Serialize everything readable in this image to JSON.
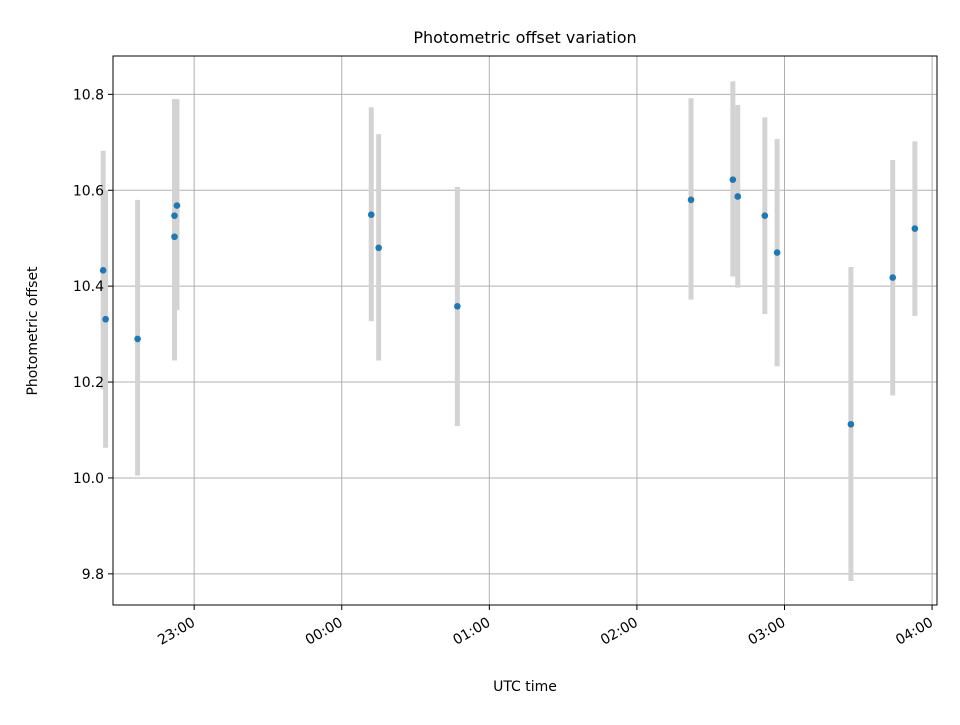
{
  "chart_data": {
    "type": "scatter",
    "title": "Photometric offset variation",
    "xlabel": "UTC time",
    "ylabel": "Photometric offset",
    "xlim": [
      "22:27",
      "04:02"
    ],
    "ylim": [
      9.735,
      10.88
    ],
    "x_ticks": [
      "23:00",
      "00:00",
      "01:00",
      "02:00",
      "03:00",
      "04:00"
    ],
    "y_ticks": [
      "9.8",
      "10.0",
      "10.2",
      "10.4",
      "10.6",
      "10.8"
    ],
    "grid": true,
    "point_color": "#1f77b4",
    "errorbar_color": "#d3d3d3",
    "points": [
      {
        "x": "22:23",
        "y": 10.433,
        "ylow": 10.185,
        "yhigh": 10.682
      },
      {
        "x": "22:24",
        "y": 10.331,
        "ylow": 10.063,
        "yhigh": 10.6
      },
      {
        "x": "22:37",
        "y": 10.29,
        "ylow": 10.005,
        "yhigh": 10.58
      },
      {
        "x": "22:52",
        "y": 10.503,
        "ylow": 10.245,
        "yhigh": 10.763
      },
      {
        "x": "22:52",
        "y": 10.547,
        "ylow": 10.3,
        "yhigh": 10.79
      },
      {
        "x": "22:53",
        "y": 10.568,
        "ylow": 10.35,
        "yhigh": 10.79
      },
      {
        "x": "00:12",
        "y": 10.549,
        "ylow": 10.327,
        "yhigh": 10.773
      },
      {
        "x": "00:15",
        "y": 10.48,
        "ylow": 10.245,
        "yhigh": 10.717
      },
      {
        "x": "00:47",
        "y": 10.358,
        "ylow": 10.108,
        "yhigh": 10.607
      },
      {
        "x": "02:22",
        "y": 10.58,
        "ylow": 10.372,
        "yhigh": 10.792
      },
      {
        "x": "02:39",
        "y": 10.622,
        "ylow": 10.42,
        "yhigh": 10.827
      },
      {
        "x": "02:41",
        "y": 10.587,
        "ylow": 10.397,
        "yhigh": 10.778
      },
      {
        "x": "02:52",
        "y": 10.547,
        "ylow": 10.342,
        "yhigh": 10.752
      },
      {
        "x": "02:57",
        "y": 10.47,
        "ylow": 10.233,
        "yhigh": 10.707
      },
      {
        "x": "03:27",
        "y": 10.112,
        "ylow": 9.785,
        "yhigh": 10.44
      },
      {
        "x": "03:44",
        "y": 10.418,
        "ylow": 10.172,
        "yhigh": 10.663
      },
      {
        "x": "03:53",
        "y": 10.52,
        "ylow": 10.338,
        "yhigh": 10.702
      }
    ]
  }
}
